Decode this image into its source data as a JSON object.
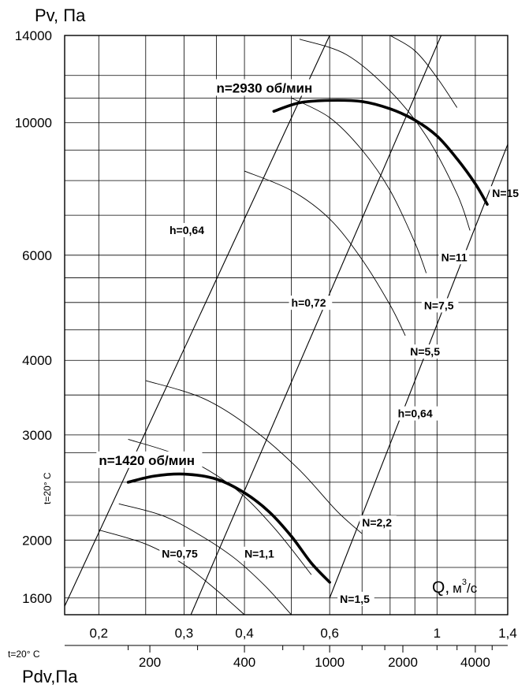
{
  "chart_data": {
    "type": "line",
    "title": "",
    "ylabel_main": "Pv",
    "ylabel_unit": ", Па",
    "x_axis_label_main": "Q,",
    "x_axis_label_unit": "м",
    "x_axis_label_sup": "3",
    "x_axis_label_tail": "/c",
    "x_scale": "log",
    "y_scale": "log",
    "xlim": [
      0.17,
      1.4
    ],
    "ylim": [
      1500,
      14000
    ],
    "y_ticks": [
      {
        "value": 14000,
        "label": "14000"
      },
      {
        "value": 10000,
        "label": "10000"
      },
      {
        "value": 6000,
        "label": "6000"
      },
      {
        "value": 4000,
        "label": "4000"
      },
      {
        "value": 3000,
        "label": "3000"
      },
      {
        "value": 2000,
        "label": "2000"
      },
      {
        "value": 1600,
        "label": "1600"
      }
    ],
    "y_grid": [
      1600,
      1800,
      2000,
      2200,
      2500,
      2800,
      3000,
      3500,
      4000,
      4500,
      5000,
      5500,
      6000,
      7000,
      8000,
      9000,
      10000,
      11000,
      12000,
      14000
    ],
    "x_ticks": [
      {
        "value": 0.2,
        "label": "0,2"
      },
      {
        "value": 0.3,
        "label": "0,3"
      },
      {
        "value": 0.4,
        "label": "0,4"
      },
      {
        "value": 0.6,
        "label": "0,6"
      },
      {
        "value": 1.0,
        "label": "1"
      },
      {
        "value": 1.4,
        "label": "1,4"
      }
    ],
    "x_grid": [
      0.2,
      0.25,
      0.3,
      0.35,
      0.4,
      0.5,
      0.6,
      0.7,
      0.8,
      0.9,
      1.0,
      1.2,
      1.4
    ],
    "pdv_axis": {
      "label_main": "Pdv",
      "label_unit": ",Па",
      "ticks": [
        {
          "q": 0.255,
          "label": "200"
        },
        {
          "q": 0.4,
          "label": "400"
        },
        {
          "q": 0.6,
          "label": "1000"
        },
        {
          "q": 0.85,
          "label": "2000"
        },
        {
          "q": 1.2,
          "label": "4000"
        }
      ],
      "minor_ticks_q": [
        0.23,
        0.32,
        0.48,
        0.53,
        0.7,
        0.78,
        1.0,
        1.1,
        1.3
      ]
    },
    "temperature_label": "t=20° C",
    "series": [
      {
        "name": "n=2930 об/мин",
        "x": [
          0.46,
          0.52,
          0.6,
          0.7,
          0.8,
          0.9,
          1.0,
          1.1,
          1.2,
          1.27
        ],
        "y": [
          10450,
          10800,
          10900,
          10850,
          10550,
          10100,
          9500,
          8700,
          7900,
          7300
        ]
      },
      {
        "name": "n=1420 об/мин",
        "x": [
          0.23,
          0.26,
          0.3,
          0.35,
          0.4,
          0.45,
          0.5,
          0.55,
          0.6
        ],
        "y": [
          2500,
          2560,
          2580,
          2530,
          2400,
          2230,
          2030,
          1830,
          1700
        ]
      }
    ],
    "efficiency_lines": [
      {
        "label": "h=0,64",
        "x": [
          0.17,
          0.6
        ],
        "y": [
          1550,
          14000
        ]
      },
      {
        "label": "h=0,72",
        "x": [
          0.31,
          1.02
        ],
        "y": [
          1500,
          14000
        ]
      },
      {
        "label": "h=0,64",
        "x": [
          0.6,
          1.4
        ],
        "y": [
          1600,
          9200
        ]
      }
    ],
    "power_curves": [
      {
        "label": "N=0,75",
        "x": [
          0.2,
          0.25,
          0.3,
          0.35,
          0.4
        ],
        "y": [
          2080,
          1970,
          1820,
          1650,
          1500
        ]
      },
      {
        "label": "N=1,1",
        "x": [
          0.22,
          0.27,
          0.32,
          0.38,
          0.44,
          0.5
        ],
        "y": [
          2300,
          2200,
          2050,
          1870,
          1680,
          1500
        ]
      },
      {
        "label": "N=1,5",
        "x": [
          0.23,
          0.3,
          0.38,
          0.46,
          0.55
        ],
        "y": [
          2950,
          2750,
          2450,
          2100,
          1750
        ]
      },
      {
        "label": "N=2,2",
        "x": [
          0.25,
          0.33,
          0.42,
          0.52,
          0.62,
          0.7
        ],
        "y": [
          3700,
          3450,
          3050,
          2620,
          2240,
          2050
        ]
      },
      {
        "label": "N=5,5",
        "x": [
          0.4,
          0.5,
          0.6,
          0.7,
          0.8,
          0.86
        ],
        "y": [
          8300,
          7700,
          6900,
          5900,
          4950,
          4400
        ]
      },
      {
        "label": "N=7,5",
        "x": [
          0.5,
          0.6,
          0.7,
          0.8,
          0.9,
          0.95
        ],
        "y": [
          11000,
          10200,
          9000,
          7700,
          6300,
          5600
        ]
      },
      {
        "label": "N=11",
        "x": [
          0.52,
          0.65,
          0.8,
          0.95,
          1.1,
          1.17
        ],
        "y": [
          13800,
          13000,
          11300,
          9500,
          7600,
          6600
        ]
      },
      {
        "label": "N=15",
        "x": [
          0.8,
          0.9,
          1.0,
          1.1
        ],
        "y": [
          14000,
          13200,
          11900,
          10600
        ]
      }
    ],
    "labels": [
      {
        "key": "n2930",
        "text": "n=2930 об/мин",
        "x": 0.35,
        "y": 11300
      },
      {
        "key": "n1420",
        "text": "n=1420 об/мин",
        "x": 0.2,
        "y": 2690
      },
      {
        "key": "h064a",
        "text": "h=0,64",
        "x": 0.28,
        "y": 6550
      },
      {
        "key": "h072",
        "text": "h=0,72",
        "x": 0.5,
        "y": 4950
      },
      {
        "key": "h064b",
        "text": "h=0,64",
        "x": 0.83,
        "y": 3230
      },
      {
        "key": "N075",
        "text": "N=0,75",
        "x": 0.27,
        "y": 1880
      },
      {
        "key": "N11",
        "text": "N=1,1",
        "x": 0.4,
        "y": 1880
      },
      {
        "key": "N15",
        "text": "N=1,5",
        "x": 0.63,
        "y": 1580
      },
      {
        "key": "N22",
        "text": "N=2,2",
        "x": 0.7,
        "y": 2120
      },
      {
        "key": "N55",
        "text": "N=5,5",
        "x": 0.88,
        "y": 4100
      },
      {
        "key": "N75",
        "text": "N=7,5",
        "x": 0.94,
        "y": 4900
      },
      {
        "key": "N11b",
        "text": "N=11",
        "x": 1.02,
        "y": 5900
      },
      {
        "key": "N15b",
        "text": "N=15",
        "x": 1.3,
        "y": 7550
      }
    ]
  }
}
